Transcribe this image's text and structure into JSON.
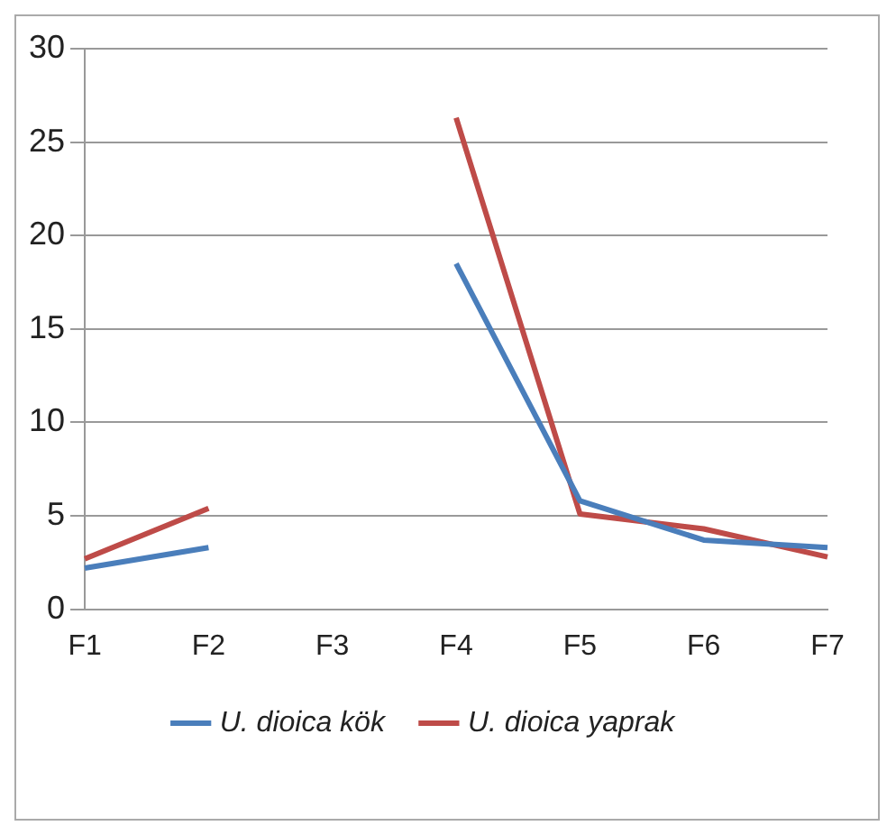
{
  "chart_data": {
    "type": "line",
    "categories": [
      "F1",
      "F2",
      "F3",
      "F4",
      "F5",
      "F6",
      "F7"
    ],
    "series": [
      {
        "name": "U. dioica kök",
        "color": "#4a7ebb",
        "values": [
          2.2,
          3.3,
          null,
          18.5,
          5.8,
          3.7,
          3.3
        ]
      },
      {
        "name": "U. dioica yaprak",
        "color": "#be4b48",
        "values": [
          2.7,
          5.4,
          null,
          26.3,
          5.1,
          4.3,
          2.8
        ]
      }
    ],
    "ylim": [
      0,
      30
    ],
    "yticks": [
      0,
      5,
      10,
      15,
      20,
      25,
      30
    ],
    "grid": "y",
    "legend": "bottom",
    "marker": "none",
    "line_style": "solid"
  }
}
